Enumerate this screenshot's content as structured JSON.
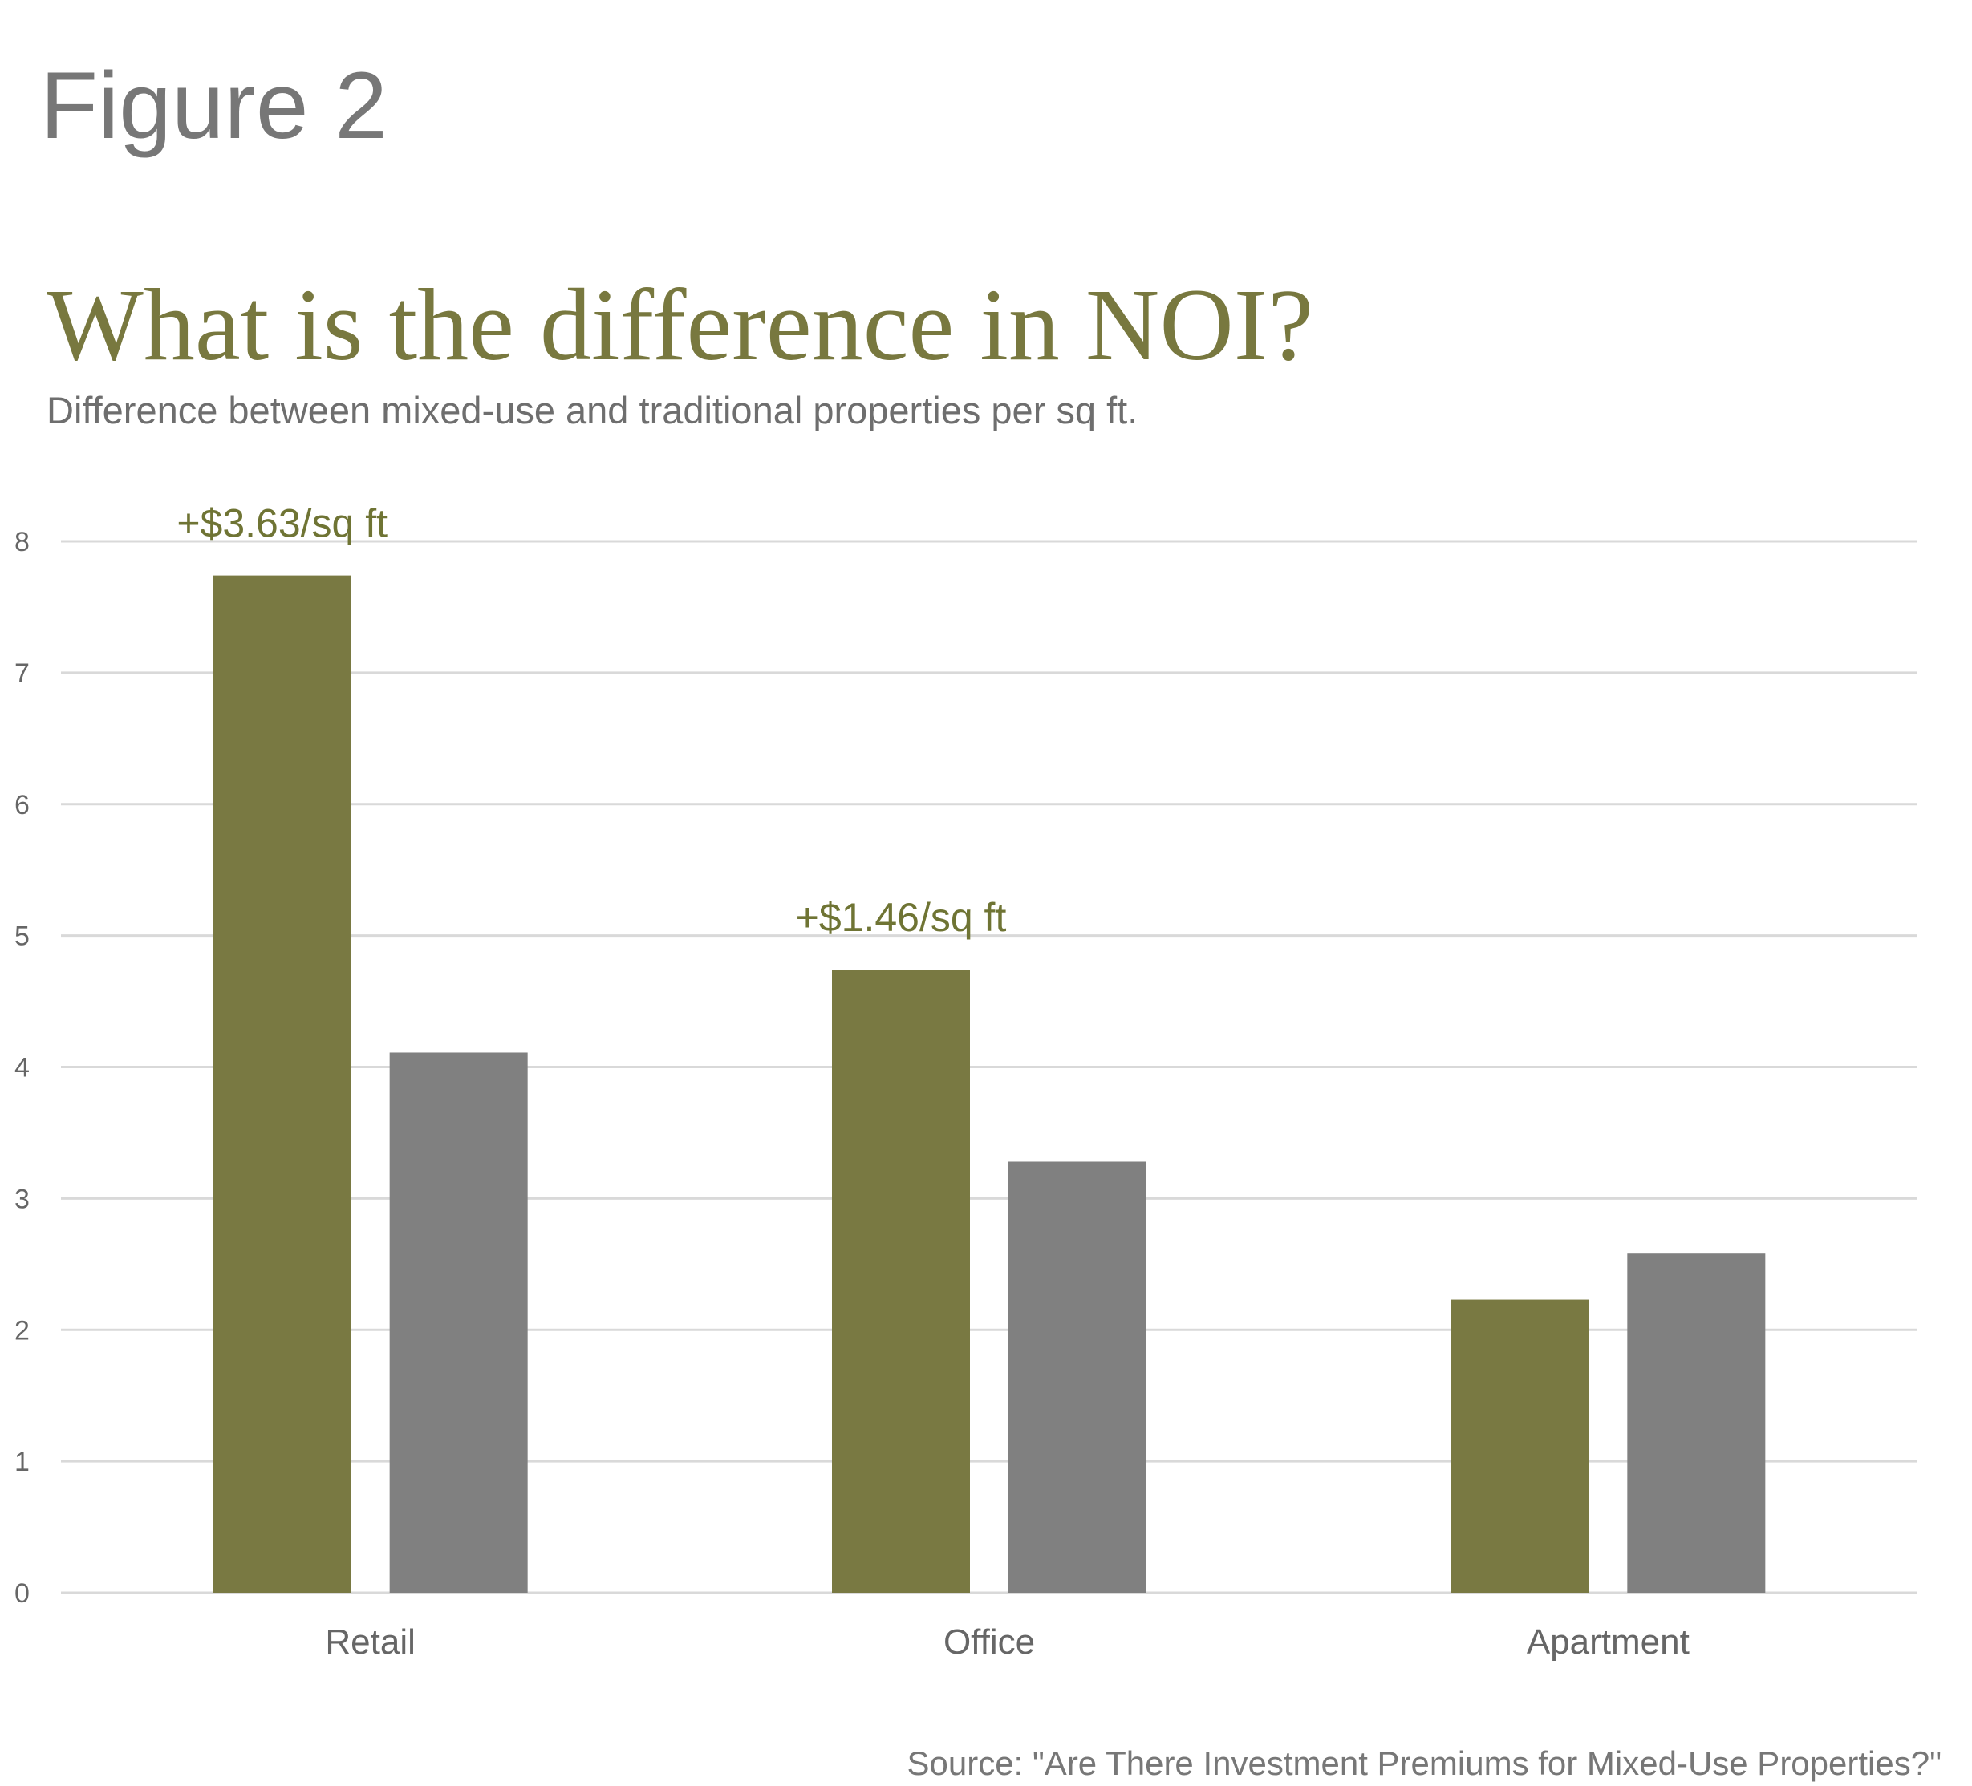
{
  "figure_label": "Figure 2",
  "colors": {
    "mixed_use": "#797942",
    "traditional": "#808080",
    "title": "#78783f",
    "grid": "#d9d9d9"
  },
  "chart_data": {
    "type": "bar",
    "title": "What is the difference in NOI?",
    "subtitle": "Difference between mixed-use and traditional properties per sq ft.",
    "categories": [
      "Retail",
      "Office",
      "Apartment"
    ],
    "series": [
      {
        "values": [
          7.74,
          4.74,
          2.23
        ]
      },
      {
        "values": [
          4.11,
          3.28,
          2.58
        ]
      }
    ],
    "annotations": [
      "+$3.63/sq ft",
      "+$1.46/sq ft",
      ""
    ],
    "ylim": [
      0,
      8
    ],
    "yticks": [
      "0",
      "1",
      "2",
      "3",
      "4",
      "5",
      "6",
      "7",
      "8"
    ],
    "grid": true,
    "xlabel": "",
    "ylabel": ""
  },
  "source": "Source: \"Are There Investment Premiums for Mixed-Use Properties?\""
}
